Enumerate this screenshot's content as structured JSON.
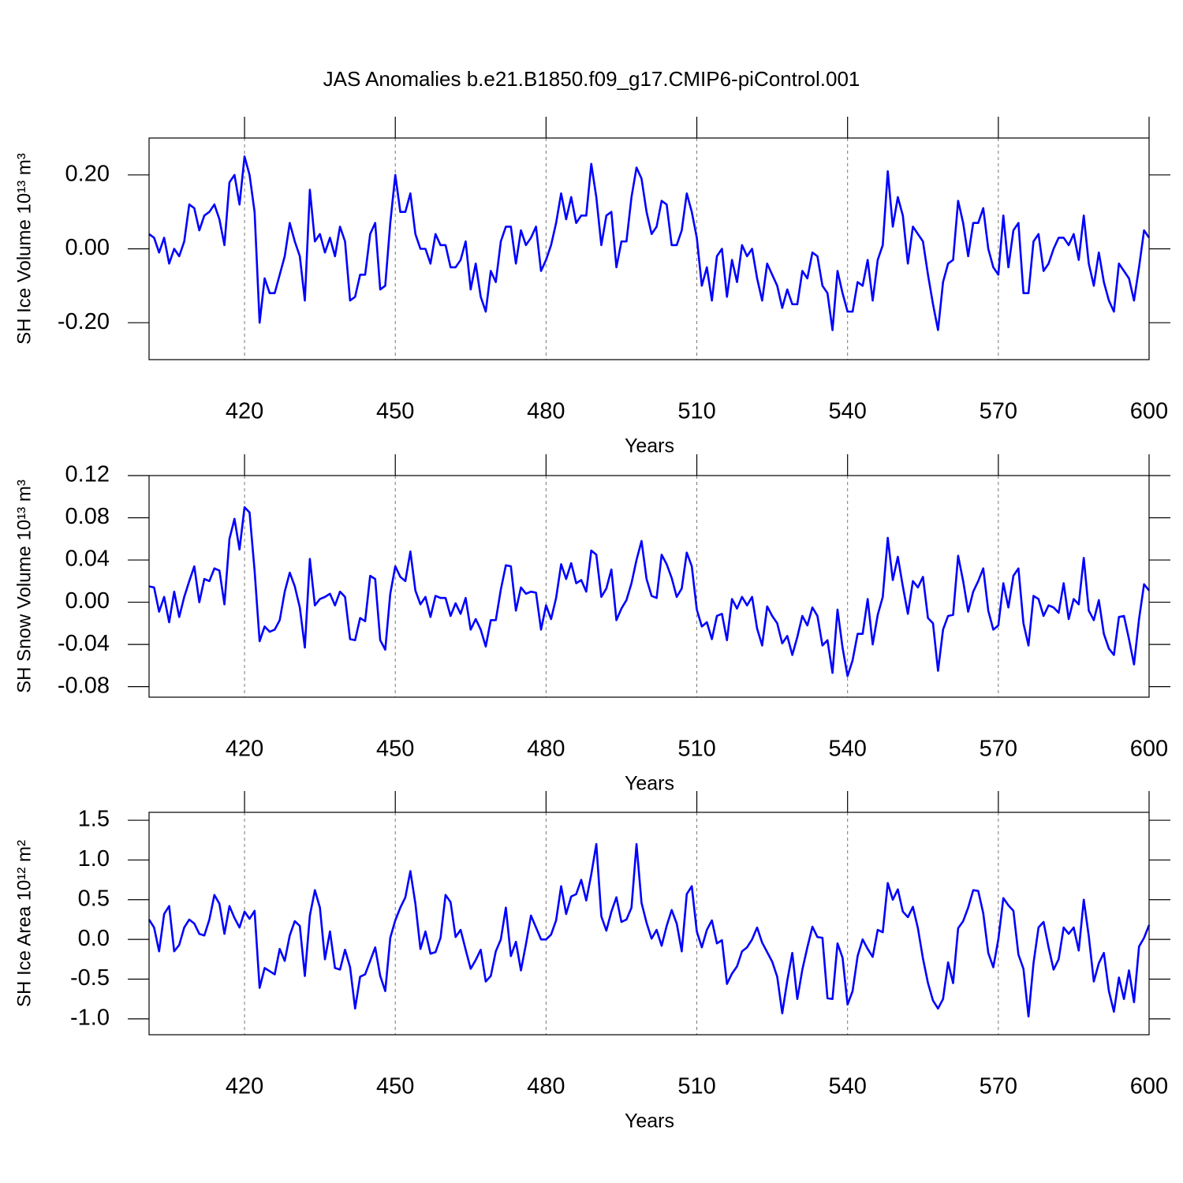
{
  "title": "JAS Anomalies b.e21.B1850.f09_g17.CMIP6-piControl.001",
  "chart_data": [
    {
      "type": "line",
      "ylabel": "SH Ice Volume 10¹³ m³",
      "xlabel": "Years",
      "color": "#0000ff",
      "xgrid": true,
      "xlim": [
        401,
        600
      ],
      "xticks": [
        420,
        450,
        480,
        510,
        540,
        570,
        600
      ],
      "ylim": [
        -0.3,
        0.3
      ],
      "yticks": [
        {
          "value": -0.2,
          "label": "-0.20"
        },
        {
          "value": 0,
          "label": "0.00"
        },
        {
          "value": 0.2,
          "label": "0.20"
        }
      ],
      "x": [
        401,
        402,
        403,
        404,
        405,
        406,
        407,
        408,
        409,
        410,
        411,
        412,
        413,
        414,
        415,
        416,
        417,
        418,
        419,
        420,
        421,
        422,
        423,
        424,
        425,
        426,
        427,
        428,
        429,
        430,
        431,
        432,
        433,
        434,
        435,
        436,
        437,
        438,
        439,
        440,
        441,
        442,
        443,
        444,
        445,
        446,
        447,
        448,
        449,
        450,
        451,
        452,
        453,
        454,
        455,
        456,
        457,
        458,
        459,
        460,
        461,
        462,
        463,
        464,
        465,
        466,
        467,
        468,
        469,
        470,
        471,
        472,
        473,
        474,
        475,
        476,
        477,
        478,
        479,
        480,
        481,
        482,
        483,
        484,
        485,
        486,
        487,
        488,
        489,
        490,
        491,
        492,
        493,
        494,
        495,
        496,
        497,
        498,
        499,
        500,
        501,
        502,
        503,
        504,
        505,
        506,
        507,
        508,
        509,
        510,
        511,
        512,
        513,
        514,
        515,
        516,
        517,
        518,
        519,
        520,
        521,
        522,
        523,
        524,
        525,
        526,
        527,
        528,
        529,
        530,
        531,
        532,
        533,
        534,
        535,
        536,
        537,
        538,
        539,
        540,
        541,
        542,
        543,
        544,
        545,
        546,
        547,
        548,
        549,
        550,
        551,
        552,
        553,
        554,
        555,
        556,
        557,
        558,
        559,
        560,
        561,
        562,
        563,
        564,
        565,
        566,
        567,
        568,
        569,
        570,
        571,
        572,
        573,
        574,
        575,
        576,
        577,
        578,
        579,
        580,
        581,
        582,
        583,
        584,
        585,
        586,
        587,
        588,
        589,
        590,
        591,
        592,
        593,
        594,
        595,
        596,
        597,
        598,
        599,
        600
      ],
      "values": [
        0.04,
        0.03,
        -0.01,
        0.03,
        -0.04,
        0.0,
        -0.02,
        0.02,
        0.12,
        0.11,
        0.05,
        0.09,
        0.1,
        0.12,
        0.08,
        0.01,
        0.18,
        0.2,
        0.12,
        0.25,
        0.2,
        0.1,
        -0.2,
        -0.08,
        -0.12,
        -0.12,
        -0.07,
        -0.02,
        0.07,
        0.02,
        -0.02,
        -0.14,
        0.16,
        0.02,
        0.04,
        -0.01,
        0.03,
        -0.02,
        0.06,
        0.02,
        -0.14,
        -0.13,
        -0.07,
        -0.07,
        0.04,
        0.07,
        -0.11,
        -0.1,
        0.07,
        0.2,
        0.1,
        0.1,
        0.15,
        0.04,
        0.0,
        0.0,
        -0.04,
        0.04,
        0.01,
        0.01,
        -0.05,
        -0.05,
        -0.03,
        0.02,
        -0.11,
        -0.04,
        -0.13,
        -0.17,
        -0.06,
        -0.09,
        0.02,
        0.06,
        0.06,
        -0.04,
        0.05,
        0.01,
        0.03,
        0.06,
        -0.06,
        -0.03,
        0.01,
        0.07,
        0.15,
        0.08,
        0.14,
        0.07,
        0.09,
        0.09,
        0.23,
        0.14,
        0.01,
        0.09,
        0.1,
        -0.05,
        0.02,
        0.02,
        0.14,
        0.22,
        0.19,
        0.1,
        0.04,
        0.06,
        0.13,
        0.12,
        0.01,
        0.01,
        0.05,
        0.15,
        0.1,
        0.03,
        -0.1,
        -0.05,
        -0.14,
        -0.02,
        0.0,
        -0.13,
        -0.03,
        -0.09,
        0.01,
        -0.02,
        0.0,
        -0.08,
        -0.14,
        -0.04,
        -0.07,
        -0.1,
        -0.16,
        -0.11,
        -0.15,
        -0.15,
        -0.06,
        -0.08,
        -0.01,
        -0.02,
        -0.1,
        -0.12,
        -0.22,
        -0.06,
        -0.12,
        -0.17,
        -0.17,
        -0.09,
        -0.1,
        -0.03,
        -0.14,
        -0.03,
        0.01,
        0.21,
        0.06,
        0.14,
        0.09,
        -0.04,
        0.06,
        0.04,
        0.02,
        -0.07,
        -0.15,
        -0.22,
        -0.09,
        -0.04,
        -0.03,
        0.13,
        0.07,
        -0.02,
        0.07,
        0.07,
        0.11,
        0.0,
        -0.05,
        -0.07,
        0.09,
        -0.05,
        0.05,
        0.07,
        -0.12,
        -0.12,
        0.02,
        0.04,
        -0.06,
        -0.04,
        0.0,
        0.03,
        0.03,
        0.01,
        0.04,
        -0.03,
        0.09,
        -0.04,
        -0.1,
        -0.01,
        -0.09,
        -0.14,
        -0.17,
        -0.04,
        -0.06,
        -0.08,
        -0.14,
        -0.05,
        0.05,
        0.03
      ]
    },
    {
      "type": "line",
      "ylabel": "SH Snow Volume 10¹³ m³",
      "xlabel": "Years",
      "color": "#0000ff",
      "xgrid": true,
      "xlim": [
        401,
        600
      ],
      "xticks": [
        420,
        450,
        480,
        510,
        540,
        570,
        600
      ],
      "ylim": [
        -0.09,
        0.12
      ],
      "yticks": [
        {
          "value": -0.08,
          "label": "-0.08"
        },
        {
          "value": -0.04,
          "label": "-0.04"
        },
        {
          "value": 0,
          "label": "0.00"
        },
        {
          "value": 0.04,
          "label": "0.04"
        },
        {
          "value": 0.08,
          "label": "0.08"
        },
        {
          "value": 0.12,
          "label": "0.12"
        }
      ],
      "x": [
        401,
        402,
        403,
        404,
        405,
        406,
        407,
        408,
        409,
        410,
        411,
        412,
        413,
        414,
        415,
        416,
        417,
        418,
        419,
        420,
        421,
        422,
        423,
        424,
        425,
        426,
        427,
        428,
        429,
        430,
        431,
        432,
        433,
        434,
        435,
        436,
        437,
        438,
        439,
        440,
        441,
        442,
        443,
        444,
        445,
        446,
        447,
        448,
        449,
        450,
        451,
        452,
        453,
        454,
        455,
        456,
        457,
        458,
        459,
        460,
        461,
        462,
        463,
        464,
        465,
        466,
        467,
        468,
        469,
        470,
        471,
        472,
        473,
        474,
        475,
        476,
        477,
        478,
        479,
        480,
        481,
        482,
        483,
        484,
        485,
        486,
        487,
        488,
        489,
        490,
        491,
        492,
        493,
        494,
        495,
        496,
        497,
        498,
        499,
        500,
        501,
        502,
        503,
        504,
        505,
        506,
        507,
        508,
        509,
        510,
        511,
        512,
        513,
        514,
        515,
        516,
        517,
        518,
        519,
        520,
        521,
        522,
        523,
        524,
        525,
        526,
        527,
        528,
        529,
        530,
        531,
        532,
        533,
        534,
        535,
        536,
        537,
        538,
        539,
        540,
        541,
        542,
        543,
        544,
        545,
        546,
        547,
        548,
        549,
        550,
        551,
        552,
        553,
        554,
        555,
        556,
        557,
        558,
        559,
        560,
        561,
        562,
        563,
        564,
        565,
        566,
        567,
        568,
        569,
        570,
        571,
        572,
        573,
        574,
        575,
        576,
        577,
        578,
        579,
        580,
        581,
        582,
        583,
        584,
        585,
        586,
        587,
        588,
        589,
        590,
        591,
        592,
        593,
        594,
        595,
        596,
        597,
        598,
        599,
        600
      ],
      "values": [
        0.015,
        0.014,
        -0.009,
        0.005,
        -0.019,
        0.01,
        -0.014,
        0.005,
        0.02,
        0.034,
        0.0,
        0.022,
        0.02,
        0.032,
        0.03,
        -0.002,
        0.06,
        0.079,
        0.05,
        0.09,
        0.085,
        0.03,
        -0.037,
        -0.023,
        -0.028,
        -0.026,
        -0.017,
        0.01,
        0.028,
        0.015,
        -0.005,
        -0.043,
        0.041,
        -0.003,
        0.003,
        0.005,
        0.008,
        -0.003,
        0.01,
        0.005,
        -0.035,
        -0.036,
        -0.015,
        -0.018,
        0.025,
        0.022,
        -0.036,
        -0.045,
        0.008,
        0.034,
        0.024,
        0.02,
        0.048,
        0.011,
        -0.002,
        0.005,
        -0.014,
        0.006,
        0.004,
        0.004,
        -0.013,
        -0.001,
        -0.011,
        0.004,
        -0.026,
        -0.016,
        -0.026,
        -0.042,
        -0.017,
        -0.017,
        0.012,
        0.035,
        0.034,
        -0.008,
        0.014,
        0.008,
        0.01,
        0.009,
        -0.026,
        -0.003,
        -0.016,
        0.004,
        0.036,
        0.022,
        0.037,
        0.018,
        0.021,
        0.01,
        0.049,
        0.045,
        0.005,
        0.013,
        0.031,
        -0.017,
        -0.006,
        0.002,
        0.018,
        0.04,
        0.058,
        0.022,
        0.006,
        0.004,
        0.045,
        0.036,
        0.023,
        0.005,
        0.013,
        0.047,
        0.034,
        -0.007,
        -0.023,
        -0.019,
        -0.035,
        -0.013,
        -0.011,
        -0.036,
        0.003,
        -0.006,
        0.005,
        -0.003,
        0.005,
        -0.025,
        -0.041,
        -0.004,
        -0.013,
        -0.02,
        -0.039,
        -0.032,
        -0.05,
        -0.033,
        -0.013,
        -0.022,
        -0.005,
        -0.013,
        -0.041,
        -0.036,
        -0.067,
        -0.007,
        -0.043,
        -0.07,
        -0.055,
        -0.03,
        -0.03,
        0.003,
        -0.04,
        -0.012,
        0.005,
        0.061,
        0.021,
        0.043,
        0.015,
        -0.011,
        0.02,
        0.014,
        0.024,
        -0.015,
        -0.02,
        -0.065,
        -0.026,
        -0.013,
        -0.012,
        0.044,
        0.02,
        -0.009,
        0.01,
        0.02,
        0.032,
        -0.008,
        -0.026,
        -0.022,
        0.018,
        -0.005,
        0.025,
        0.032,
        -0.02,
        -0.041,
        0.006,
        0.003,
        -0.013,
        -0.003,
        -0.005,
        -0.01,
        0.018,
        -0.016,
        0.003,
        -0.002,
        0.042,
        -0.008,
        -0.017,
        0.002,
        -0.03,
        -0.044,
        -0.05,
        -0.014,
        -0.013,
        -0.035,
        -0.059,
        -0.016,
        0.017,
        0.011
      ]
    },
    {
      "type": "line",
      "ylabel": "SH Ice Area 10¹² m²",
      "xlabel": "Years",
      "color": "#0000ff",
      "xgrid": true,
      "xlim": [
        401,
        600
      ],
      "xticks": [
        420,
        450,
        480,
        510,
        540,
        570,
        600
      ],
      "ylim": [
        -1.2,
        1.6
      ],
      "yticks": [
        {
          "value": -1,
          "label": "-1.0"
        },
        -0.5,
        {
          "value": 0,
          "label": "0.0"
        },
        0.5,
        {
          "value": 1,
          "label": "1.0"
        },
        1.5
      ],
      "x": [
        401,
        402,
        403,
        404,
        405,
        406,
        407,
        408,
        409,
        410,
        411,
        412,
        413,
        414,
        415,
        416,
        417,
        418,
        419,
        420,
        421,
        422,
        423,
        424,
        425,
        426,
        427,
        428,
        429,
        430,
        431,
        432,
        433,
        434,
        435,
        436,
        437,
        438,
        439,
        440,
        441,
        442,
        443,
        444,
        445,
        446,
        447,
        448,
        449,
        450,
        451,
        452,
        453,
        454,
        455,
        456,
        457,
        458,
        459,
        460,
        461,
        462,
        463,
        464,
        465,
        466,
        467,
        468,
        469,
        470,
        471,
        472,
        473,
        474,
        475,
        476,
        477,
        478,
        479,
        480,
        481,
        482,
        483,
        484,
        485,
        486,
        487,
        488,
        489,
        490,
        491,
        492,
        493,
        494,
        495,
        496,
        497,
        498,
        499,
        500,
        501,
        502,
        503,
        504,
        505,
        506,
        507,
        508,
        509,
        510,
        511,
        512,
        513,
        514,
        515,
        516,
        517,
        518,
        519,
        520,
        521,
        522,
        523,
        524,
        525,
        526,
        527,
        528,
        529,
        530,
        531,
        532,
        533,
        534,
        535,
        536,
        537,
        538,
        539,
        540,
        541,
        542,
        543,
        544,
        545,
        546,
        547,
        548,
        549,
        550,
        551,
        552,
        553,
        554,
        555,
        556,
        557,
        558,
        559,
        560,
        561,
        562,
        563,
        564,
        565,
        566,
        567,
        568,
        569,
        570,
        571,
        572,
        573,
        574,
        575,
        576,
        577,
        578,
        579,
        580,
        581,
        582,
        583,
        584,
        585,
        586,
        587,
        588,
        589,
        590,
        591,
        592,
        593,
        594,
        595,
        596,
        597,
        598,
        599,
        600
      ],
      "values": [
        0.25,
        0.15,
        -0.15,
        0.32,
        0.42,
        -0.15,
        -0.07,
        0.15,
        0.25,
        0.2,
        0.07,
        0.05,
        0.25,
        0.56,
        0.45,
        0.07,
        0.42,
        0.27,
        0.15,
        0.35,
        0.26,
        0.36,
        -0.61,
        -0.36,
        -0.4,
        -0.44,
        -0.12,
        -0.27,
        0.05,
        0.23,
        0.17,
        -0.46,
        0.3,
        0.62,
        0.4,
        -0.25,
        0.1,
        -0.36,
        -0.38,
        -0.13,
        -0.35,
        -0.87,
        -0.47,
        -0.44,
        -0.27,
        -0.1,
        -0.46,
        -0.65,
        0.02,
        0.24,
        0.4,
        0.53,
        0.86,
        0.45,
        -0.12,
        0.1,
        -0.18,
        -0.16,
        0.02,
        0.56,
        0.47,
        0.03,
        0.12,
        -0.13,
        -0.37,
        -0.26,
        -0.13,
        -0.53,
        -0.46,
        -0.15,
        0.0,
        0.4,
        -0.21,
        -0.03,
        -0.39,
        -0.06,
        0.3,
        0.15,
        0.0,
        0.0,
        0.06,
        0.24,
        0.67,
        0.32,
        0.54,
        0.57,
        0.75,
        0.49,
        0.82,
        1.2,
        0.29,
        0.11,
        0.35,
        0.53,
        0.22,
        0.25,
        0.4,
        1.2,
        0.46,
        0.21,
        0.01,
        0.12,
        -0.08,
        0.17,
        0.37,
        0.2,
        -0.15,
        0.57,
        0.67,
        0.1,
        -0.1,
        0.12,
        0.24,
        -0.05,
        -0.01,
        -0.56,
        -0.43,
        -0.34,
        -0.15,
        -0.1,
        0.0,
        0.15,
        -0.04,
        -0.16,
        -0.28,
        -0.47,
        -0.93,
        -0.52,
        -0.17,
        -0.75,
        -0.38,
        -0.1,
        0.16,
        0.03,
        0.02,
        -0.74,
        -0.75,
        -0.05,
        -0.23,
        -0.82,
        -0.65,
        -0.21,
        0.0,
        -0.12,
        -0.22,
        0.12,
        0.09,
        0.71,
        0.5,
        0.63,
        0.35,
        0.28,
        0.41,
        0.14,
        -0.24,
        -0.55,
        -0.77,
        -0.87,
        -0.75,
        -0.29,
        -0.55,
        0.14,
        0.23,
        0.4,
        0.62,
        0.61,
        0.33,
        -0.17,
        -0.35,
        0.0,
        0.52,
        0.43,
        0.36,
        -0.19,
        -0.37,
        -0.97,
        -0.3,
        0.15,
        0.22,
        -0.1,
        -0.38,
        -0.25,
        0.15,
        0.07,
        0.15,
        -0.14,
        0.5,
        0.04,
        -0.53,
        -0.3,
        -0.17,
        -0.65,
        -0.91,
        -0.48,
        -0.75,
        -0.39,
        -0.79,
        -0.09,
        0.02,
        0.18
      ]
    }
  ]
}
